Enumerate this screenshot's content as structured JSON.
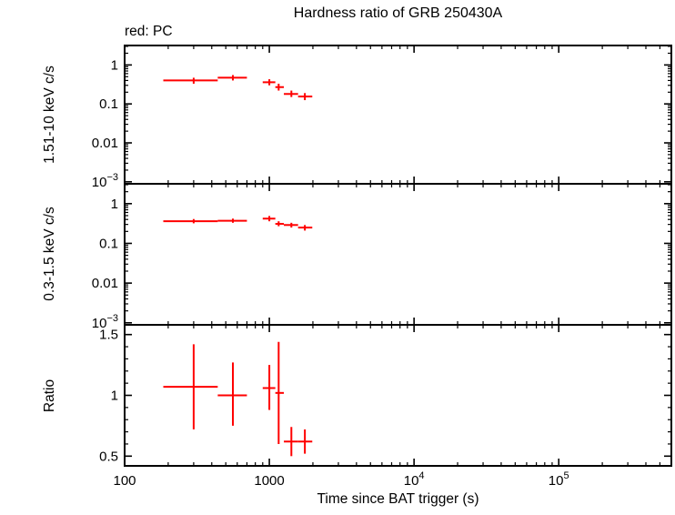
{
  "title": "Hardness ratio of GRB 250430A",
  "legend": "red: PC",
  "colors": {
    "data": "#ff0000",
    "frame": "#000000"
  },
  "x_axis": {
    "label": "Time since BAT trigger (s)",
    "scale": "log",
    "range": [
      100,
      600000
    ],
    "ticks": [
      100,
      1000,
      10000,
      100000
    ],
    "tick_labels": [
      "100",
      "1000",
      "10^{4}",
      "10^{5}"
    ]
  },
  "chart_data": [
    {
      "type": "scatter",
      "name": "hard-band",
      "ylabel": "1.51-10 keV c/s",
      "yscale": "log",
      "range": [
        0.00089,
        3.16
      ],
      "ticks": [
        1,
        0.1,
        0.01,
        0.001
      ],
      "tick_labels": [
        "1",
        "0.1",
        "0.01",
        "10^{−3}"
      ],
      "series": [
        {
          "name": "PC",
          "color": "#ff0000",
          "points": [
            {
              "t": 300,
              "t_lo": 185,
              "t_hi": 440,
              "v": 0.4,
              "v_lo": 0.33,
              "v_hi": 0.47
            },
            {
              "t": 560,
              "t_lo": 440,
              "t_hi": 700,
              "v": 0.47,
              "v_lo": 0.4,
              "v_hi": 0.55
            },
            {
              "t": 1000,
              "t_lo": 900,
              "t_hi": 1100,
              "v": 0.36,
              "v_lo": 0.3,
              "v_hi": 0.43
            },
            {
              "t": 1160,
              "t_lo": 1100,
              "t_hi": 1260,
              "v": 0.27,
              "v_lo": 0.22,
              "v_hi": 0.33
            },
            {
              "t": 1420,
              "t_lo": 1260,
              "t_hi": 1580,
              "v": 0.18,
              "v_lo": 0.15,
              "v_hi": 0.22
            },
            {
              "t": 1760,
              "t_lo": 1580,
              "t_hi": 1980,
              "v": 0.155,
              "v_lo": 0.125,
              "v_hi": 0.19
            }
          ]
        }
      ]
    },
    {
      "type": "scatter",
      "name": "soft-band",
      "ylabel": "0.3-1.5 keV c/s",
      "yscale": "log",
      "range": [
        0.00089,
        3.16
      ],
      "ticks": [
        1,
        0.1,
        0.01,
        0.001
      ],
      "tick_labels": [
        "1",
        "0.1",
        "0.01",
        "10^{−3}"
      ],
      "series": [
        {
          "name": "PC",
          "color": "#ff0000",
          "points": [
            {
              "t": 300,
              "t_lo": 185,
              "t_hi": 440,
              "v": 0.36,
              "v_lo": 0.32,
              "v_hi": 0.41
            },
            {
              "t": 560,
              "t_lo": 440,
              "t_hi": 700,
              "v": 0.37,
              "v_lo": 0.33,
              "v_hi": 0.42
            },
            {
              "t": 1000,
              "t_lo": 900,
              "t_hi": 1100,
              "v": 0.42,
              "v_lo": 0.36,
              "v_hi": 0.49
            },
            {
              "t": 1160,
              "t_lo": 1100,
              "t_hi": 1260,
              "v": 0.31,
              "v_lo": 0.27,
              "v_hi": 0.36
            },
            {
              "t": 1420,
              "t_lo": 1260,
              "t_hi": 1580,
              "v": 0.29,
              "v_lo": 0.25,
              "v_hi": 0.33
            },
            {
              "t": 1760,
              "t_lo": 1580,
              "t_hi": 1980,
              "v": 0.25,
              "v_lo": 0.21,
              "v_hi": 0.29
            }
          ]
        }
      ]
    },
    {
      "type": "scatter",
      "name": "ratio",
      "ylabel": "Ratio",
      "yscale": "linear",
      "range": [
        0.42,
        1.58
      ],
      "ticks": [
        0.5,
        1,
        1.5
      ],
      "tick_labels": [
        "0.5",
        "1",
        "1.5"
      ],
      "series": [
        {
          "name": "PC",
          "color": "#ff0000",
          "points": [
            {
              "t": 300,
              "t_lo": 185,
              "t_hi": 440,
              "v": 1.07,
              "v_lo": 0.72,
              "v_hi": 1.42
            },
            {
              "t": 560,
              "t_lo": 440,
              "t_hi": 700,
              "v": 1.0,
              "v_lo": 0.75,
              "v_hi": 1.27
            },
            {
              "t": 1000,
              "t_lo": 900,
              "t_hi": 1100,
              "v": 1.06,
              "v_lo": 0.88,
              "v_hi": 1.25
            },
            {
              "t": 1160,
              "t_lo": 1100,
              "t_hi": 1260,
              "v": 1.02,
              "v_lo": 0.6,
              "v_hi": 1.44
            },
            {
              "t": 1420,
              "t_lo": 1260,
              "t_hi": 1580,
              "v": 0.62,
              "v_lo": 0.5,
              "v_hi": 0.74
            },
            {
              "t": 1760,
              "t_lo": 1580,
              "t_hi": 1980,
              "v": 0.62,
              "v_lo": 0.52,
              "v_hi": 0.72
            }
          ]
        }
      ]
    }
  ]
}
